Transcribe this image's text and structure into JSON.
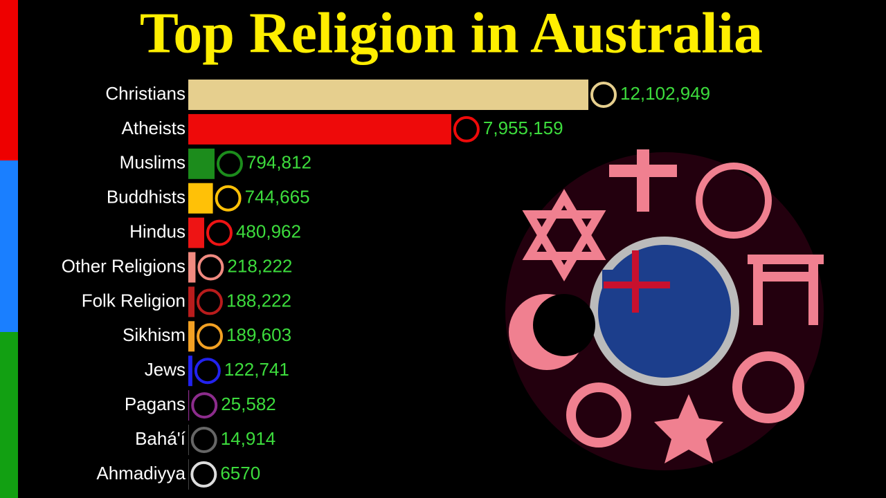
{
  "chart_data": {
    "type": "bar",
    "orientation": "horizontal",
    "title": "Top Religion in Australia",
    "categories": [
      "Christians",
      "Atheists",
      "Muslims",
      "Buddhists",
      "Hindus",
      "Other Religions",
      "Folk Religion",
      "Sikhism",
      "Jews",
      "Pagans",
      "Bahá'í",
      "Ahmadiyya"
    ],
    "values": [
      12102949,
      7955159,
      794812,
      744665,
      480962,
      218222,
      188222,
      189603,
      122741,
      25582,
      14914,
      6570
    ],
    "value_labels": [
      "12,102,949",
      "7,955,159",
      "794,812",
      "744,665",
      "480,962",
      "218,222",
      "188,222",
      "189,603",
      "122,741",
      "25,582",
      "14,914",
      "6570"
    ],
    "colors": [
      "#e6cf8e",
      "#ee0a0a",
      "#1c8c1c",
      "#ffc107",
      "#ee1414",
      "#f08a80",
      "#b81c1c",
      "#f2a023",
      "#2222ee",
      "#8c2c8c",
      "#666666",
      "#dddddd"
    ]
  }
}
